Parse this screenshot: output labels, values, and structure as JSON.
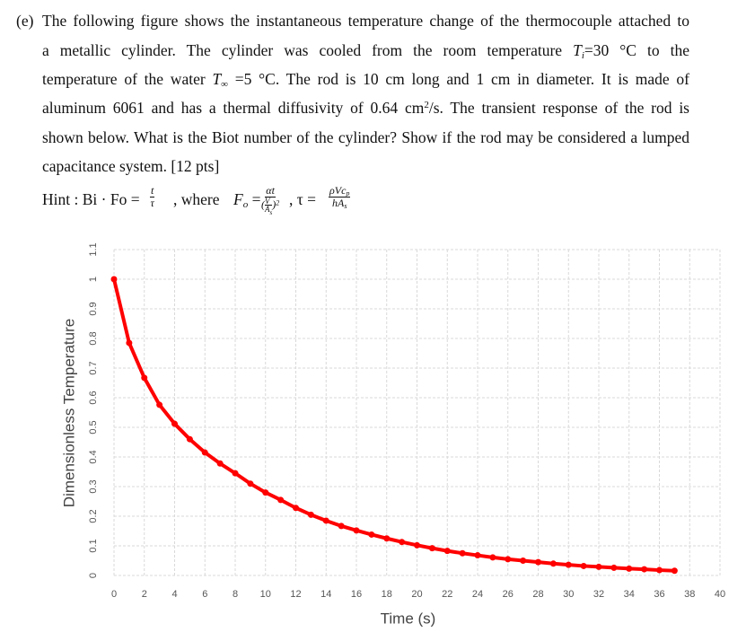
{
  "question": {
    "label": "(e)",
    "lines": [
      [
        "The following figure shows the instantaneous temperature change of the thermocouple attached to"
      ],
      [
        "a metallic cylinder. The cylinder was cooled from the room temperature ",
        "T",
        "i",
        "=30 °C to the"
      ],
      [
        "temperature of the water ",
        "T",
        "∞",
        " =5 °C. The rod is 10 cm long and 1 cm in diameter. It is made of"
      ],
      [
        "aluminum 6061 and has a thermal diffusivity of 0.64 cm",
        "2",
        "/s. The transient response of the rod is"
      ],
      [
        "shown below. What is the Biot number of the cylinder? Show if the rod may be considered a lumped"
      ],
      [
        "capacitance system. [12 pts]"
      ]
    ],
    "hint": {
      "lead": "Hint : Bi · Fo =",
      "f1": [
        "t",
        "τ"
      ],
      "where": ", where",
      "fo": [
        "F",
        "o",
        "="
      ],
      "f2_num": "αt",
      "f2_den": [
        "(",
        "V",
        "A",
        "s",
        ")",
        "2"
      ],
      "tau": ", τ =",
      "f3_num": [
        "ρVc",
        "p"
      ],
      "f3_den": [
        "hA",
        "s"
      ]
    }
  },
  "chart_data": {
    "type": "line",
    "x_label": "Time (s)",
    "y_label": "Dimensionless Temperature",
    "x": [
      0,
      1,
      2,
      3,
      4,
      5,
      6,
      7,
      8,
      9,
      10,
      11,
      12,
      13,
      14,
      15,
      16,
      17,
      18,
      19,
      20,
      21,
      22,
      23,
      24,
      25,
      26,
      27,
      28,
      29,
      30,
      31,
      32,
      33,
      34,
      35,
      36,
      37
    ],
    "values": [
      1.0,
      0.785,
      0.667,
      0.576,
      0.512,
      0.46,
      0.415,
      0.378,
      0.345,
      0.31,
      0.28,
      0.255,
      0.228,
      0.205,
      0.185,
      0.167,
      0.152,
      0.138,
      0.125,
      0.113,
      0.102,
      0.092,
      0.083,
      0.075,
      0.068,
      0.061,
      0.055,
      0.05,
      0.045,
      0.04,
      0.036,
      0.032,
      0.029,
      0.026,
      0.023,
      0.021,
      0.018,
      0.016
    ],
    "color": "#ff0000",
    "xlim": [
      0,
      40
    ],
    "ylim": [
      0,
      1.1
    ],
    "xticks": [
      0,
      2,
      4,
      6,
      8,
      10,
      12,
      14,
      16,
      18,
      20,
      22,
      24,
      26,
      28,
      30,
      32,
      34,
      36,
      38,
      40
    ],
    "yticks": [
      0,
      0.1,
      0.2,
      0.3,
      0.4,
      0.5,
      0.6,
      0.7,
      0.8,
      0.9,
      1,
      1.1
    ],
    "grid": true
  }
}
